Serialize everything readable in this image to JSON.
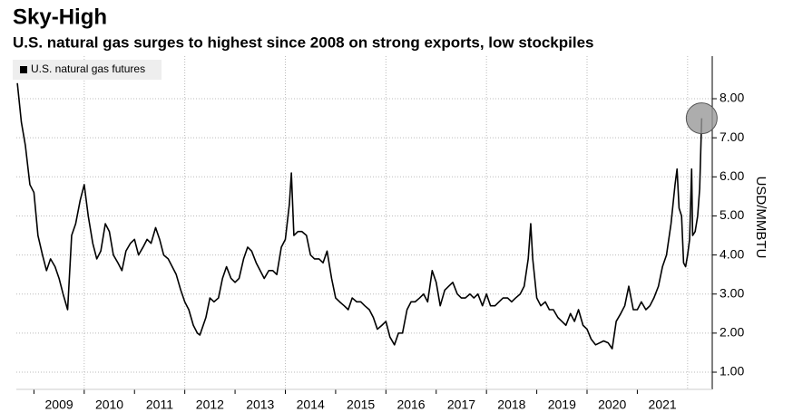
{
  "chart_data": {
    "type": "line",
    "title": "Sky-High",
    "subtitle": "U.S. natural gas surges to highest since 2008 on strong exports, low stockpiles",
    "y_label": "USD/MMBTU",
    "x": [
      2008.67,
      2008.75,
      2008.83,
      2008.92,
      2009.0,
      2009.08,
      2009.17,
      2009.25,
      2009.33,
      2009.42,
      2009.5,
      2009.58,
      2009.67,
      2009.75,
      2009.83,
      2009.92,
      2010.0,
      2010.08,
      2010.17,
      2010.25,
      2010.33,
      2010.42,
      2010.5,
      2010.58,
      2010.67,
      2010.75,
      2010.83,
      2010.92,
      2011.0,
      2011.08,
      2011.17,
      2011.25,
      2011.33,
      2011.42,
      2011.5,
      2011.58,
      2011.67,
      2011.75,
      2011.83,
      2011.92,
      2012.0,
      2012.08,
      2012.17,
      2012.25,
      2012.3,
      2012.42,
      2012.5,
      2012.58,
      2012.67,
      2012.75,
      2012.83,
      2012.92,
      2013.0,
      2013.08,
      2013.17,
      2013.25,
      2013.33,
      2013.42,
      2013.5,
      2013.58,
      2013.67,
      2013.75,
      2013.83,
      2013.92,
      2014.0,
      2014.08,
      2014.12,
      2014.17,
      2014.25,
      2014.33,
      2014.42,
      2014.5,
      2014.58,
      2014.67,
      2014.75,
      2014.83,
      2014.92,
      2015.0,
      2015.08,
      2015.17,
      2015.25,
      2015.33,
      2015.42,
      2015.5,
      2015.58,
      2015.67,
      2015.75,
      2015.83,
      2015.92,
      2016.0,
      2016.08,
      2016.17,
      2016.25,
      2016.33,
      2016.42,
      2016.5,
      2016.58,
      2016.67,
      2016.75,
      2016.83,
      2016.92,
      2017.0,
      2017.08,
      2017.17,
      2017.25,
      2017.33,
      2017.42,
      2017.5,
      2017.58,
      2017.67,
      2017.75,
      2017.83,
      2017.92,
      2018.0,
      2018.08,
      2018.17,
      2018.25,
      2018.33,
      2018.42,
      2018.5,
      2018.58,
      2018.67,
      2018.75,
      2018.83,
      2018.88,
      2018.92,
      2019.0,
      2019.08,
      2019.17,
      2019.25,
      2019.33,
      2019.42,
      2019.5,
      2019.58,
      2019.67,
      2019.75,
      2019.83,
      2019.92,
      2020.0,
      2020.08,
      2020.17,
      2020.25,
      2020.33,
      2020.42,
      2020.5,
      2020.58,
      2020.67,
      2020.75,
      2020.83,
      2020.92,
      2021.0,
      2021.08,
      2021.17,
      2021.25,
      2021.33,
      2021.42,
      2021.5,
      2021.58,
      2021.67,
      2021.75,
      2021.79,
      2021.83,
      2021.88,
      2021.92,
      2021.96,
      2022.0,
      2022.04,
      2022.08,
      2022.1,
      2022.15,
      2022.2,
      2022.24,
      2022.28
    ],
    "series": [
      {
        "name": "U.S. natural gas futures",
        "color": "#000000",
        "values": [
          8.4,
          7.4,
          6.8,
          5.8,
          5.6,
          4.5,
          4.0,
          3.6,
          3.9,
          3.7,
          3.4,
          3.0,
          2.6,
          4.5,
          4.8,
          5.4,
          5.8,
          5.0,
          4.3,
          3.9,
          4.1,
          4.8,
          4.6,
          4.0,
          3.8,
          3.6,
          4.1,
          4.3,
          4.4,
          4.0,
          4.2,
          4.4,
          4.3,
          4.7,
          4.4,
          4.0,
          3.9,
          3.7,
          3.5,
          3.1,
          2.8,
          2.6,
          2.2,
          2.0,
          1.95,
          2.4,
          2.9,
          2.8,
          2.9,
          3.4,
          3.7,
          3.4,
          3.3,
          3.4,
          3.9,
          4.2,
          4.1,
          3.8,
          3.6,
          3.4,
          3.6,
          3.6,
          3.5,
          4.2,
          4.4,
          5.3,
          6.1,
          4.5,
          4.6,
          4.6,
          4.5,
          4.0,
          3.9,
          3.9,
          3.8,
          4.1,
          3.4,
          2.9,
          2.8,
          2.7,
          2.6,
          2.9,
          2.8,
          2.8,
          2.7,
          2.6,
          2.4,
          2.1,
          2.2,
          2.3,
          1.9,
          1.7,
          2.0,
          2.0,
          2.6,
          2.8,
          2.8,
          2.9,
          3.0,
          2.8,
          3.6,
          3.3,
          2.7,
          3.1,
          3.2,
          3.3,
          3.0,
          2.9,
          2.9,
          3.0,
          2.9,
          3.0,
          2.7,
          3.0,
          2.7,
          2.7,
          2.8,
          2.9,
          2.9,
          2.8,
          2.9,
          3.0,
          3.2,
          3.9,
          4.8,
          3.9,
          2.9,
          2.7,
          2.8,
          2.6,
          2.6,
          2.4,
          2.3,
          2.2,
          2.5,
          2.3,
          2.6,
          2.2,
          2.1,
          1.85,
          1.7,
          1.75,
          1.8,
          1.75,
          1.6,
          2.3,
          2.5,
          2.7,
          3.2,
          2.6,
          2.6,
          2.8,
          2.6,
          2.7,
          2.9,
          3.2,
          3.7,
          4.0,
          4.8,
          5.8,
          6.2,
          5.2,
          5.0,
          3.8,
          3.7,
          4.0,
          4.4,
          6.2,
          4.5,
          4.6,
          5.0,
          5.7,
          7.5
        ]
      }
    ],
    "xlim": [
      2008.65,
      2022.49
    ],
    "xticks": [
      2009,
      2010,
      2011,
      2012,
      2013,
      2014,
      2015,
      2016,
      2017,
      2018,
      2019,
      2020,
      2021
    ],
    "xgrid": [
      2010,
      2012,
      2014,
      2016,
      2018,
      2020,
      2022
    ],
    "ylim": [
      0.56,
      9.09
    ],
    "yticks": [
      {
        "value": 1,
        "label": "1.00"
      },
      {
        "value": 2,
        "label": "2.00"
      },
      {
        "value": 3,
        "label": "3.00"
      },
      {
        "value": 4,
        "label": "4.00"
      },
      {
        "value": 5,
        "label": "5.00"
      },
      {
        "value": 6,
        "label": "6.00"
      },
      {
        "value": 7,
        "label": "7.00"
      },
      {
        "value": 8,
        "label": "8.00"
      }
    ],
    "grid": true,
    "legend": "top-left",
    "highlight_last": true
  }
}
